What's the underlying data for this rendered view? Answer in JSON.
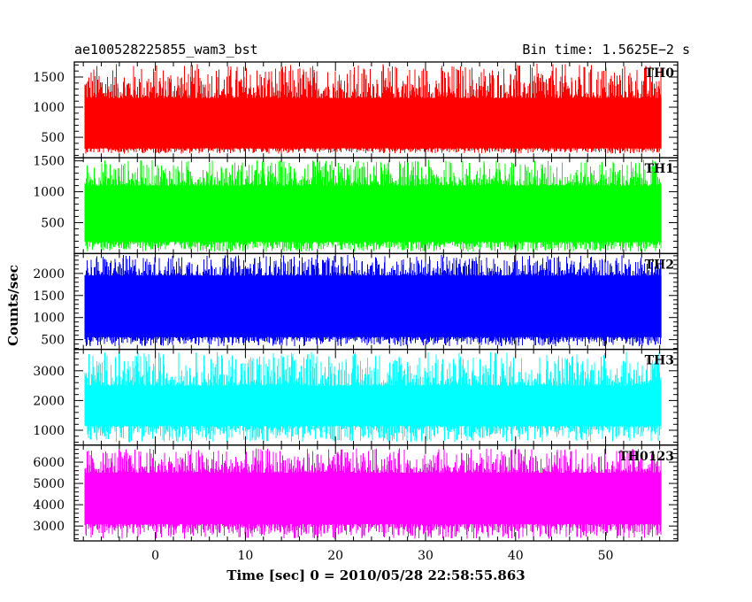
{
  "header": {
    "title": "ae100528225855_wam3_bst",
    "bin_time": "Bin time: 1.5625E−2 s"
  },
  "chart_data": {
    "type": "line",
    "title": "ae100528225855_wam3_bst",
    "subtitle": "Bin time: 1.5625E−2 s",
    "xlabel": "Time [sec] 0 = 2010/05/28 22:58:55.863",
    "ylabel": "Counts/sec",
    "xlim": [
      -9,
      58
    ],
    "x_ticks": [
      0,
      10,
      20,
      30,
      40,
      50
    ],
    "x_data_range": [
      -7.8,
      56.2
    ],
    "bin_time": 0.015625,
    "grid": false,
    "legend": "none",
    "panels": [
      {
        "name": "TH0",
        "color": "#ff0000",
        "ylim": [
          160,
          1750
        ],
        "y_ticks": [
          500,
          1000,
          1500
        ],
        "band_low": 320,
        "band_high": 1150,
        "spike_min": 230,
        "spike_max": 1720
      },
      {
        "name": "TH1",
        "color": "#00ff00",
        "ylim": [
          0,
          1550
        ],
        "y_ticks": [
          500,
          1000,
          1500
        ],
        "band_low": 190,
        "band_high": 1100,
        "spike_min": 30,
        "spike_max": 1520
      },
      {
        "name": "TH2",
        "color": "#0000ff",
        "ylim": [
          280,
          2450
        ],
        "y_ticks": [
          500,
          1000,
          1500,
          2000
        ],
        "band_low": 560,
        "band_high": 1950,
        "spike_min": 350,
        "spike_max": 2420
      },
      {
        "name": "TH3",
        "color": "#00ffff",
        "ylim": [
          500,
          3720
        ],
        "y_ticks": [
          1000,
          2000,
          3000
        ],
        "band_low": 1150,
        "band_high": 2500,
        "spike_min": 600,
        "spike_max": 3650
      },
      {
        "name": "TH0123",
        "color": "#ff00ff",
        "ylim": [
          2300,
          6800
        ],
        "y_ticks": [
          3000,
          4000,
          5000,
          6000
        ],
        "band_low": 3100,
        "band_high": 5500,
        "spike_min": 2400,
        "spike_max": 6650
      }
    ]
  }
}
